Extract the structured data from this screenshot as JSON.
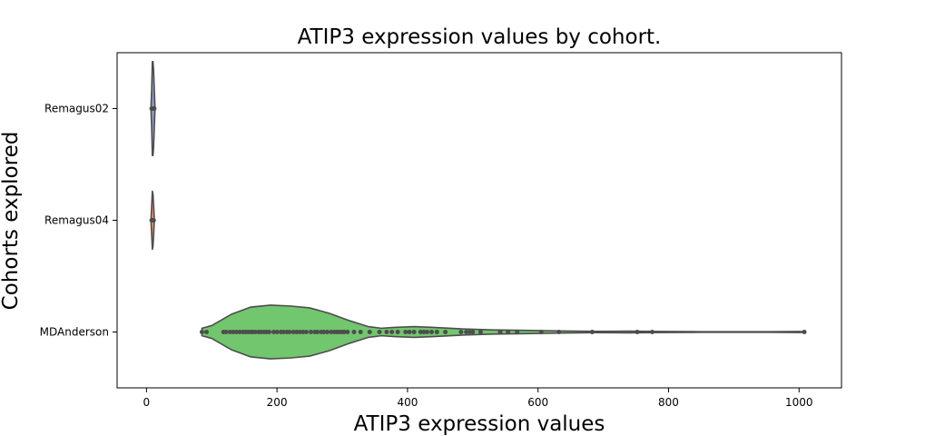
{
  "chart_data": {
    "type": "violin",
    "title": "ATIP3 expression values by cohort.",
    "xlabel": "ATIP3 expression values",
    "ylabel": "Cohorts explored",
    "xlim": [
      -45,
      1065
    ],
    "xticks": [
      0,
      200,
      400,
      600,
      800,
      1000
    ],
    "categories": [
      "Remagus02",
      "Remagus04",
      "MDAnderson"
    ],
    "orientation": "horizontal",
    "inner": "point",
    "colors": {
      "Remagus02": "#8da0cb",
      "Remagus04": "#fc8d62",
      "MDAnderson": "#72c66e",
      "outline": "#4d4d4d",
      "points": "#4d4d4d"
    },
    "series": [
      {
        "name": "Remagus02",
        "points": [
          8,
          9,
          9,
          10,
          10,
          10,
          11,
          11,
          12
        ],
        "density": [
          [
            7,
            0.05
          ],
          [
            8,
            0.4
          ],
          [
            9,
            1.0
          ],
          [
            10,
            1.0
          ],
          [
            11,
            0.8
          ],
          [
            12,
            0.4
          ],
          [
            13,
            0.05
          ]
        ],
        "extent_halfwidth": 0.42
      },
      {
        "name": "Remagus04",
        "points": [
          8,
          9,
          9,
          10,
          10,
          11
        ],
        "density": [
          [
            7,
            0.05
          ],
          [
            8,
            0.5
          ],
          [
            9,
            1.0
          ],
          [
            10,
            0.9
          ],
          [
            11,
            0.5
          ],
          [
            12,
            0.05
          ]
        ],
        "extent_halfwidth": 0.26
      },
      {
        "name": "MDAnderson",
        "points": [
          85,
          92,
          118,
          122,
          128,
          133,
          138,
          143,
          148,
          152,
          156,
          160,
          163,
          167,
          172,
          176,
          180,
          184,
          188,
          195,
          200,
          206,
          210,
          215,
          219,
          225,
          230,
          235,
          240,
          245,
          252,
          258,
          262,
          268,
          272,
          277,
          283,
          288,
          292,
          296,
          300,
          303,
          308,
          318,
          328,
          342,
          357,
          368,
          376,
          385,
          397,
          403,
          410,
          420,
          425,
          430,
          437,
          445,
          458,
          482,
          490,
          495,
          500,
          512,
          542,
          554,
          568,
          605,
          632,
          683,
          752,
          775,
          1008
        ],
        "density": [
          [
            85,
            0.14
          ],
          [
            100,
            0.24
          ],
          [
            130,
            0.66
          ],
          [
            160,
            0.93
          ],
          [
            190,
            1.0
          ],
          [
            220,
            0.97
          ],
          [
            250,
            0.9
          ],
          [
            280,
            0.7
          ],
          [
            310,
            0.43
          ],
          [
            340,
            0.2
          ],
          [
            360,
            0.14
          ],
          [
            380,
            0.17
          ],
          [
            410,
            0.2
          ],
          [
            440,
            0.17
          ],
          [
            480,
            0.12
          ],
          [
            530,
            0.08
          ],
          [
            580,
            0.06
          ],
          [
            630,
            0.04
          ],
          [
            690,
            0.025
          ],
          [
            740,
            0.03
          ],
          [
            790,
            0.02
          ],
          [
            850,
            0.012
          ],
          [
            950,
            0.012
          ],
          [
            1000,
            0.02
          ],
          [
            1008,
            0.01
          ]
        ],
        "extent_halfwidth": 0.24
      }
    ],
    "grid": false,
    "legend": "none"
  }
}
